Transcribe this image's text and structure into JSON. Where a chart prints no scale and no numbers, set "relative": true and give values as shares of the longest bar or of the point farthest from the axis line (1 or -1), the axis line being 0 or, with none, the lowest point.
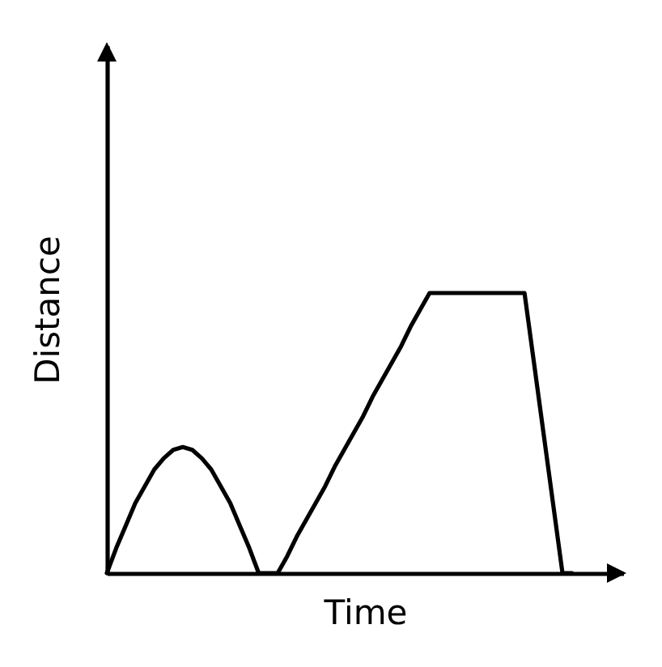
{
  "chart_data": {
    "type": "line",
    "xlabel": "Time",
    "ylabel": "Distance",
    "relative": true,
    "tick_labels": false,
    "categories": [
      null,
      null,
      null,
      null,
      null,
      null,
      null,
      null,
      null,
      null,
      null,
      null,
      null,
      null,
      null,
      null,
      null,
      null,
      null,
      null,
      null,
      null,
      null,
      null,
      null,
      null,
      null,
      null,
      null,
      null,
      null,
      null,
      null,
      null,
      null,
      null,
      null,
      null,
      null,
      null,
      null,
      null,
      null,
      null,
      null,
      null,
      null,
      null,
      null,
      null
    ],
    "series": [
      {
        "color": "#000000",
        "values": [
          0,
          0.09,
          0.17,
          0.25,
          0.31,
          0.37,
          0.41,
          0.44,
          0.45,
          0.44,
          0.41,
          0.37,
          0.31,
          0.25,
          0.17,
          0.09,
          0,
          0,
          0,
          0.06,
          0.13,
          0.19,
          0.25,
          0.31,
          0.38,
          0.44,
          0.5,
          0.56,
          0.63,
          0.69,
          0.75,
          0.81,
          0.88,
          0.94,
          1,
          1,
          1,
          1,
          1,
          1,
          1,
          1,
          1,
          1,
          1,
          0.75,
          0.5,
          0.25,
          0,
          0
        ]
      }
    ]
  }
}
